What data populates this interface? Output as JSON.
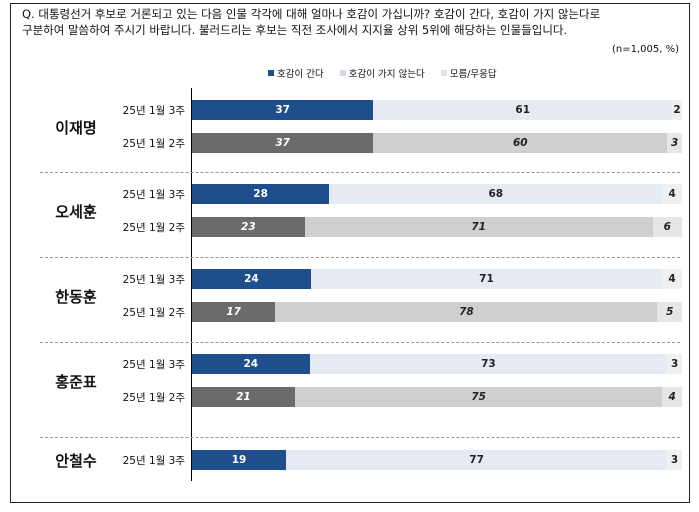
{
  "question": {
    "line1": "Q. 대통령선거 후보로 거론되고 있는 다음 인물 각각에 대해 얼마나 호감이 가십니까? 호감이 간다, 호감이 가지 않는다로",
    "line2": "구분하여 말씀하여 주시기 바랍니다. 불러드리는 후보는 직전 조사에서 지지율 상위 5위에 해당하는 인물들입니다."
  },
  "sample_note": "(n=1,005, %)",
  "colors": {
    "cur": [
      "#1f4e8c",
      "#e6ebf3",
      "#f0f0f0"
    ],
    "prev": [
      "#6b6b6b",
      "#cfcfcf",
      "#e6e6e6"
    ]
  },
  "chart_data": {
    "type": "bar",
    "orientation": "horizontal-stacked",
    "legend_position": "top",
    "series_names": [
      "호감이 간다",
      "호감이 가지 않는다",
      "모름/무응답"
    ],
    "groups": [
      {
        "name": "이재명",
        "rows": [
          {
            "label": "25년 1월 3주",
            "values": [
              37,
              61,
              2
            ]
          },
          {
            "label": "25년 1월 2주",
            "values": [
              37,
              60,
              3
            ]
          }
        ]
      },
      {
        "name": "오세훈",
        "rows": [
          {
            "label": "25년 1월 3주",
            "values": [
              28,
              68,
              4
            ]
          },
          {
            "label": "25년 1월 2주",
            "values": [
              23,
              71,
              6
            ]
          }
        ]
      },
      {
        "name": "한동훈",
        "rows": [
          {
            "label": "25년 1월 3주",
            "values": [
              24,
              71,
              4
            ]
          },
          {
            "label": "25년 1월 2주",
            "values": [
              17,
              78,
              5
            ]
          }
        ]
      },
      {
        "name": "홍준표",
        "rows": [
          {
            "label": "25년 1월 3주",
            "values": [
              24,
              73,
              3
            ]
          },
          {
            "label": "25년 1월 2주",
            "values": [
              21,
              75,
              4
            ]
          }
        ]
      },
      {
        "name": "안철수",
        "rows": [
          {
            "label": "25년 1월 3주",
            "values": [
              19,
              77,
              3
            ]
          }
        ]
      }
    ]
  }
}
